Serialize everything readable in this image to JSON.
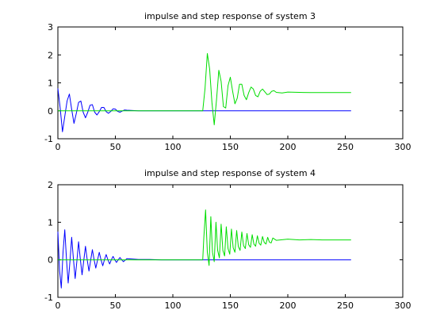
{
  "chart_data": [
    {
      "type": "line",
      "title": "impulse and step response of system 3",
      "xlabel": "",
      "ylabel": "",
      "xlim": [
        0,
        300
      ],
      "ylim": [
        -1,
        3
      ],
      "xticks": [
        0,
        50,
        100,
        150,
        200,
        250,
        300
      ],
      "yticks": [
        -1,
        0,
        1,
        2,
        3
      ],
      "xtick_labels": [
        "0",
        "50",
        "100",
        "150",
        "200",
        "250",
        "300"
      ],
      "ytick_labels": [
        "-1",
        "0",
        "1",
        "2",
        "3"
      ],
      "grid": false,
      "legend": "none",
      "series": [
        {
          "color": "#0000ff",
          "role": "impulse",
          "x": [
            0,
            2,
            4,
            6,
            8,
            10,
            12,
            14,
            16,
            18,
            20,
            22,
            24,
            26,
            28,
            30,
            32,
            34,
            36,
            38,
            40,
            42,
            44,
            46,
            48,
            50,
            52,
            54,
            56,
            58,
            60,
            70,
            80,
            90,
            100,
            120,
            150,
            200,
            255
          ],
          "y": [
            0.8,
            0.1,
            -0.75,
            -0.2,
            0.35,
            0.6,
            0.05,
            -0.45,
            -0.1,
            0.3,
            0.35,
            -0.05,
            -0.25,
            -0.05,
            0.2,
            0.22,
            -0.05,
            -0.15,
            -0.03,
            0.12,
            0.12,
            -0.03,
            -0.09,
            -0.02,
            0.07,
            0.06,
            -0.02,
            -0.05,
            -0.01,
            0.03,
            0.02,
            0.0,
            0.0,
            0.0,
            0.0,
            0.0,
            0.0,
            0.0,
            0.0
          ]
        },
        {
          "color": "#00dd00",
          "role": "step",
          "x": [
            0,
            126,
            128,
            130,
            132,
            134,
            136,
            138,
            140,
            142,
            144,
            146,
            148,
            150,
            152,
            154,
            156,
            158,
            160,
            162,
            164,
            166,
            168,
            170,
            172,
            174,
            176,
            178,
            180,
            182,
            184,
            186,
            188,
            190,
            195,
            200,
            210,
            220,
            230,
            240,
            255
          ],
          "y": [
            0,
            0,
            0.8,
            2.05,
            1.5,
            0.3,
            -0.5,
            0.4,
            1.45,
            1.05,
            0.15,
            0.1,
            0.9,
            1.2,
            0.7,
            0.25,
            0.45,
            0.95,
            0.95,
            0.55,
            0.4,
            0.65,
            0.85,
            0.78,
            0.55,
            0.5,
            0.7,
            0.78,
            0.68,
            0.58,
            0.6,
            0.7,
            0.72,
            0.66,
            0.64,
            0.67,
            0.66,
            0.65,
            0.65,
            0.65,
            0.65
          ]
        }
      ]
    },
    {
      "type": "line",
      "title": "impulse and step response of system 4",
      "xlabel": "",
      "ylabel": "",
      "xlim": [
        0,
        300
      ],
      "ylim": [
        -1,
        2
      ],
      "xticks": [
        0,
        50,
        100,
        150,
        200,
        250,
        300
      ],
      "yticks": [
        -1,
        0,
        1,
        2
      ],
      "xtick_labels": [
        "0",
        "50",
        "100",
        "150",
        "200",
        "250",
        "300"
      ],
      "ytick_labels": [
        "-1",
        "0",
        "1",
        "2"
      ],
      "grid": false,
      "legend": "none",
      "series": [
        {
          "color": "#0000ff",
          "role": "impulse",
          "x": [
            0,
            1.5,
            3,
            4.5,
            6,
            7.5,
            9,
            10.5,
            12,
            13.5,
            15,
            16.5,
            18,
            19.5,
            21,
            22.5,
            24,
            25.5,
            27,
            28.5,
            30,
            31.5,
            33,
            34.5,
            36,
            37.5,
            39,
            40.5,
            42,
            43.5,
            45,
            46.5,
            48,
            49.5,
            51,
            52.5,
            54,
            55.5,
            57,
            60,
            65,
            70,
            80,
            90,
            100,
            120,
            150,
            200,
            255
          ],
          "y": [
            0.75,
            -0.3,
            -0.75,
            0.2,
            0.8,
            0.0,
            -0.62,
            -0.05,
            0.6,
            0.02,
            -0.5,
            -0.05,
            0.48,
            0.02,
            -0.4,
            -0.03,
            0.36,
            0.0,
            -0.3,
            -0.02,
            0.27,
            0.0,
            -0.22,
            -0.01,
            0.2,
            0.0,
            -0.16,
            0.0,
            0.14,
            0.0,
            -0.11,
            0.0,
            0.09,
            0.0,
            -0.07,
            0.0,
            0.06,
            0.0,
            -0.05,
            0.03,
            0.02,
            0.01,
            0.01,
            0.0,
            0.0,
            0.0,
            0.0,
            0.0,
            0.0
          ]
        },
        {
          "color": "#00dd00",
          "role": "step",
          "x": [
            0,
            126,
            127,
            128.5,
            130,
            131.5,
            133,
            134.5,
            136,
            137.5,
            139,
            140.5,
            142,
            143.5,
            145,
            146.5,
            148,
            149.5,
            151,
            152.5,
            154,
            155.5,
            157,
            158.5,
            160,
            161.5,
            163,
            164.5,
            166,
            167.5,
            169,
            170.5,
            172,
            173.5,
            175,
            176.5,
            178,
            179.5,
            181,
            182.5,
            184,
            185.5,
            187,
            190,
            200,
            210,
            220,
            230,
            240,
            255
          ],
          "y": [
            0,
            0,
            0.6,
            1.33,
            0.2,
            -0.15,
            1.15,
            0.2,
            -0.05,
            1.0,
            0.25,
            0.05,
            0.95,
            0.25,
            0.1,
            0.88,
            0.3,
            0.15,
            0.82,
            0.32,
            0.2,
            0.78,
            0.35,
            0.25,
            0.74,
            0.38,
            0.3,
            0.7,
            0.4,
            0.33,
            0.67,
            0.42,
            0.36,
            0.64,
            0.44,
            0.39,
            0.62,
            0.46,
            0.42,
            0.6,
            0.47,
            0.45,
            0.58,
            0.52,
            0.55,
            0.53,
            0.54,
            0.53,
            0.53,
            0.53
          ]
        }
      ]
    }
  ]
}
